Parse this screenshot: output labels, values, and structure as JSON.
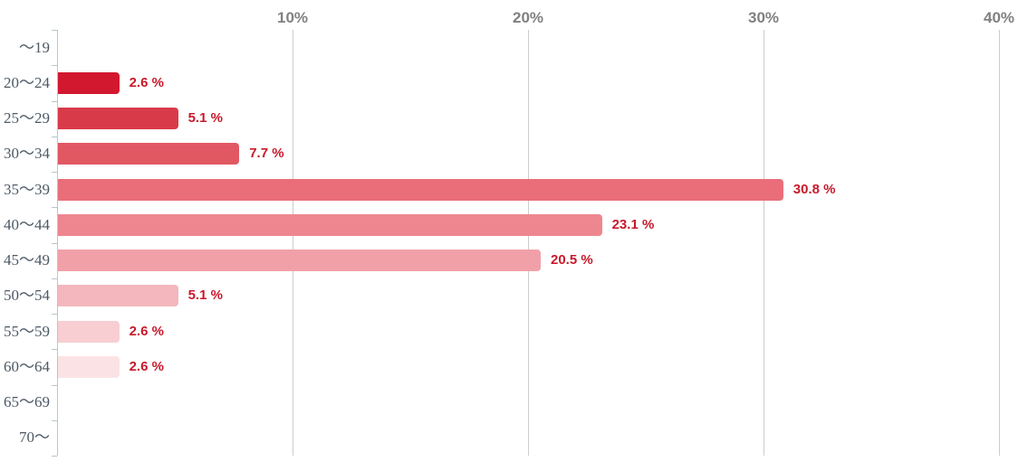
{
  "chart_data": {
    "type": "bar",
    "orientation": "horizontal",
    "title": "",
    "xlabel": "",
    "ylabel": "",
    "categories": [
      "～19",
      "20～24",
      "25～29",
      "30～34",
      "35～39",
      "40～44",
      "45～49",
      "50～54",
      "55～59",
      "60～64",
      "65～69",
      "70～"
    ],
    "values": [
      0,
      2.6,
      5.1,
      7.7,
      30.8,
      23.1,
      20.5,
      5.1,
      2.6,
      2.6,
      0,
      0
    ],
    "value_labels": [
      "",
      "2.6 %",
      "5.1 %",
      "7.7 %",
      "30.8 %",
      "23.1 %",
      "20.5 %",
      "5.1 %",
      "2.6 %",
      "2.6 %",
      "",
      ""
    ],
    "bar_colors": [
      "",
      "#d2182e",
      "#d93a49",
      "#e15863",
      "#e96e79",
      "#ee868f",
      "#f1a0a8",
      "#f4b7bd",
      "#f8ced2",
      "#fbe3e5",
      "",
      ""
    ],
    "x_ticks": [
      {
        "label": "10%",
        "value": 10
      },
      {
        "label": "20%",
        "value": 20
      },
      {
        "label": "30%",
        "value": 30
      },
      {
        "label": "40%",
        "value": 40
      }
    ],
    "xlim": [
      0,
      40.8
    ],
    "grid": true,
    "legend": "none",
    "colors": {
      "value_label": "#c8192b",
      "grid_line": "#cccccc",
      "axis_line": "#b8c6d0",
      "x_tick_label": "#808080",
      "category_label": "#4c5865",
      "background": "#ffffff"
    }
  }
}
